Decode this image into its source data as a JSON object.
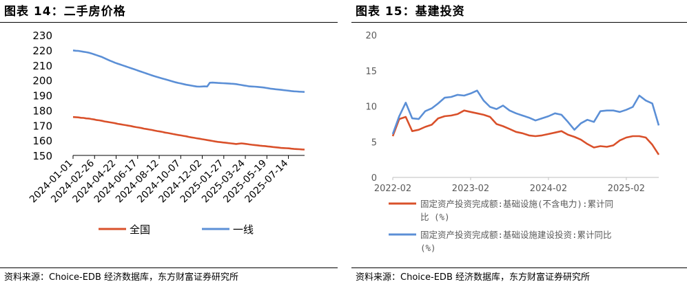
{
  "left": {
    "title": "图表 14：二手房价格",
    "source": "资料来源：Choice-EDB 经济数据库，东方财富证券研究所"
  },
  "right": {
    "title": "图表 15：基建投资",
    "source": "资料来源：Choice-EDB 经济数据库，东方财富证券研究所"
  },
  "colors": {
    "orange": "#D9502A",
    "blue": "#5B8FD6"
  },
  "chart_data": [
    {
      "type": "line",
      "title": "图表 14：二手房价格",
      "ylim": [
        150,
        230
      ],
      "yticks": [
        150,
        160,
        170,
        180,
        190,
        200,
        210,
        220,
        230
      ],
      "x_ticks": [
        "2024-01-01",
        "2024-02-26",
        "2024-04-22",
        "2024-06-17",
        "2024-08-12",
        "2024-10-07",
        "2024-12-02",
        "2025-01-27",
        "2025-03-24",
        "2025-05-19",
        "2025-07-14"
      ],
      "x_start": "2024-01-01",
      "x_end": "2025-08-25",
      "grid": false,
      "legend_position": "bottom",
      "series": [
        {
          "name": "全国",
          "color": "#D9502A",
          "values": [
            175.5,
            175.4,
            175.3,
            175.0,
            174.9,
            174.6,
            174.5,
            174.2,
            173.9,
            173.5,
            173.3,
            173.0,
            172.6,
            172.3,
            172.0,
            171.7,
            171.4,
            171.0,
            170.7,
            170.4,
            170.1,
            169.8,
            169.5,
            169.1,
            168.8,
            168.5,
            168.2,
            167.8,
            167.5,
            167.2,
            166.9,
            166.5,
            166.2,
            165.9,
            165.6,
            165.2,
            164.9,
            164.6,
            164.2,
            163.9,
            163.6,
            163.3,
            163.0,
            162.7,
            162.3,
            162.0,
            161.7,
            161.4,
            161.1,
            160.8,
            160.5,
            160.2,
            159.9,
            159.6,
            159.3,
            159.0,
            158.8,
            158.6,
            158.4,
            158.2,
            158.0,
            157.8,
            157.6,
            157.8,
            158.0,
            157.8,
            157.6,
            157.3,
            157.1,
            156.9,
            156.7,
            156.5,
            156.3,
            156.2,
            156.0,
            155.8,
            155.6,
            155.4,
            155.2,
            155.0,
            154.9,
            154.8,
            154.7,
            154.5,
            154.3,
            154.2,
            154.1,
            154.0,
            153.9
          ]
        },
        {
          "name": "一线",
          "color": "#5B8FD6",
          "values": [
            219.8,
            219.6,
            219.5,
            219.2,
            218.9,
            218.6,
            218.3,
            217.8,
            217.2,
            216.6,
            216.0,
            215.4,
            214.6,
            213.8,
            213.0,
            212.3,
            211.6,
            211.0,
            210.4,
            209.8,
            209.2,
            208.6,
            208.0,
            207.4,
            206.8,
            206.2,
            205.6,
            205.0,
            204.4,
            203.8,
            203.2,
            202.6,
            202.1,
            201.6,
            201.1,
            200.6,
            200.1,
            199.6,
            199.1,
            198.6,
            198.2,
            197.8,
            197.4,
            197.0,
            196.7,
            196.4,
            196.1,
            195.8,
            195.7,
            195.8,
            195.9,
            195.8,
            198.3,
            198.4,
            198.3,
            198.2,
            198.1,
            198.0,
            197.9,
            197.8,
            197.7,
            197.6,
            197.4,
            197.1,
            196.8,
            196.5,
            196.2,
            195.9,
            195.8,
            195.7,
            195.6,
            195.4,
            195.2,
            195.0,
            194.7,
            194.4,
            194.2,
            194.0,
            193.8,
            193.6,
            193.4,
            193.2,
            193.0,
            192.8,
            192.6,
            192.5,
            192.4,
            192.3,
            192.2
          ]
        }
      ]
    },
    {
      "type": "line",
      "title": "图表 15：基建投资",
      "ylim": [
        0,
        20
      ],
      "yticks": [
        0,
        5,
        10,
        15,
        20
      ],
      "x_ticks": [
        "2022-02",
        "2023-02",
        "2024-02",
        "2025-02"
      ],
      "x_start": "2022-02",
      "x_end": "2025-07",
      "grid": false,
      "legend_position": "bottom",
      "series": [
        {
          "name": "固定资产投资完成额:基础设施(不含电力):累计同比 (%)",
          "color": "#D9502A",
          "values": [
            5.8,
            8.2,
            8.5,
            6.5,
            6.7,
            7.1,
            7.4,
            8.3,
            8.6,
            8.7,
            8.9,
            9.4,
            9.2,
            9.0,
            8.8,
            8.5,
            7.5,
            7.2,
            6.8,
            6.4,
            6.2,
            5.9,
            5.8,
            5.9,
            6.1,
            6.3,
            6.5,
            6.0,
            5.7,
            5.3,
            4.7,
            4.2,
            4.4,
            4.3,
            4.5,
            5.2,
            5.6,
            5.8,
            5.8,
            5.6,
            4.6,
            3.2
          ]
        },
        {
          "name": "固定资产投资完成额:基础设施建设投资:累计同比 (%)",
          "color": "#5B8FD6",
          "values": [
            6.1,
            8.6,
            10.5,
            8.3,
            8.2,
            9.3,
            9.7,
            10.4,
            11.2,
            11.3,
            11.6,
            11.5,
            11.8,
            12.2,
            10.8,
            9.9,
            9.6,
            10.1,
            9.4,
            9.0,
            8.7,
            8.4,
            8.0,
            8.3,
            8.6,
            9.0,
            8.8,
            7.8,
            6.7,
            7.6,
            8.1,
            7.8,
            9.3,
            9.4,
            9.4,
            9.2,
            9.5,
            9.9,
            11.5,
            10.8,
            10.4,
            7.3
          ]
        }
      ]
    }
  ]
}
